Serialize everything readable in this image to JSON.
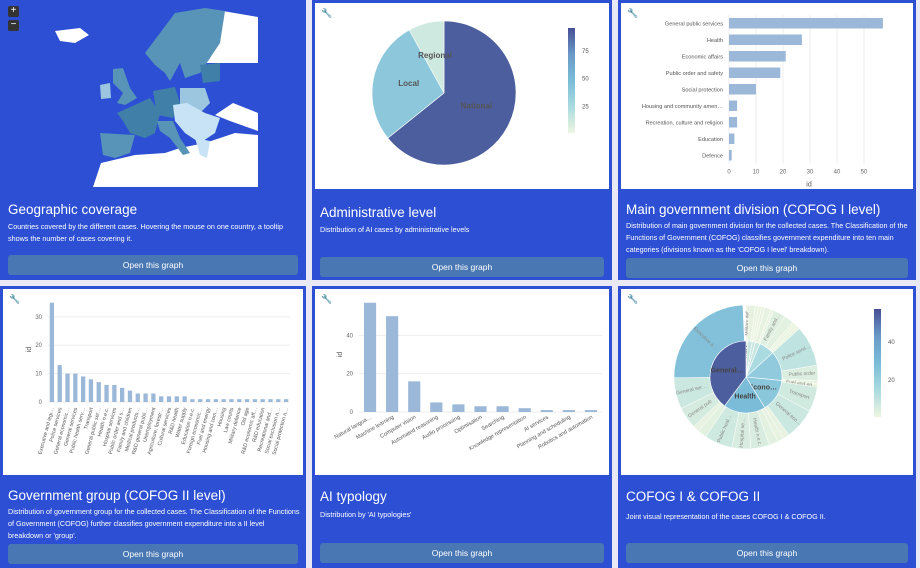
{
  "cards": [
    {
      "title": "Geographic coverage",
      "description": "Countries covered by the different cases. Hovering the mouse on one country, a tooltip shows the number of cases covering it.",
      "button": "Open this graph"
    },
    {
      "title": "Administrative level",
      "description": "Distribution of AI cases by administrative levels",
      "button": "Open this graph"
    },
    {
      "title": "Main government division (COFOG I level)",
      "description": "Distribution of main government division for the collected cases. The Classification of the Functions of Government (COFOG) classifies government expenditure into ten main categories (divisions known as the 'COFOG I level' breakdown).",
      "button": "Open this graph"
    },
    {
      "title": "Government group (COFOG II level)",
      "description": "Distribution of government group for the collected cases. The Classification of the Functions of Government (COFOG) further classifies government expenditure into a II level breakdown or 'group'.",
      "button": "Open this graph"
    },
    {
      "title": "AI typology",
      "description": "Distribution by 'AI typologies'",
      "button": "Open this graph"
    },
    {
      "title": "COFOG I & COFOG II",
      "description": "Joint visual representation of the cases COFOG I & COFOG II.",
      "button": "Open this graph"
    }
  ],
  "map": {
    "zoom_in": "+",
    "zoom_out": "−",
    "colors": {
      "sea": "#2c4fd4",
      "none": "#ffffff",
      "high": "#3f7fa8",
      "mid": "#5893b8",
      "low": "#9cc6e0",
      "vlow": "#c7e3f5"
    }
  },
  "colors": {
    "bar": "#9bb8d9",
    "scale": [
      "#eef5e0",
      "#a9dbe0",
      "#7bbcd8",
      "#6a9ac7",
      "#464f94"
    ]
  },
  "chart_data": [
    {
      "type": "pie",
      "title": "Administrative level",
      "labels": [
        "National",
        "Local",
        "Regional"
      ],
      "values": [
        88,
        38,
        11
      ],
      "colorbar_ticks": [
        25,
        50,
        75
      ]
    },
    {
      "type": "bar",
      "orientation": "horizontal",
      "title": "Main government division",
      "xlabel": "id",
      "categories": [
        "General public services",
        "Health",
        "Economic affairs",
        "Public order and safety",
        "Social protection",
        "Housing and community amen…",
        "Recreation, culture and religion",
        "Education",
        "Defence"
      ],
      "values": [
        57,
        27,
        21,
        19,
        10,
        3,
        3,
        2,
        1
      ],
      "xticks": [
        0,
        10,
        20,
        30,
        40,
        50
      ],
      "xlim": [
        0,
        60
      ]
    },
    {
      "type": "bar",
      "title": "Government group",
      "ylabel": "id",
      "categories": [
        "Executive and legi…",
        "Police services",
        "General economic…",
        "General services",
        "Public health serv…",
        "Transport",
        "General public ser…",
        "Health n.e.c.",
        "Hospital services",
        "Public order and s…",
        "Family and children",
        "Medical products…",
        "R&D general publi…",
        "Unemployment",
        "Agriculture, forestr…",
        "Cultural services",
        "R&D health",
        "Water supply",
        "Education n.e.c.",
        "Foreign economic…",
        "Fuel and energy",
        "Housing and com…",
        "Housing",
        "Law courts",
        "Military defence",
        "Old age",
        "R&D economic aff…",
        "R&D education",
        "Recreational and…",
        "Social exclusion n…",
        "Social protection n…"
      ],
      "values": [
        35,
        13,
        10,
        10,
        9,
        8,
        7,
        6,
        6,
        5,
        4,
        3,
        3,
        3,
        2,
        2,
        2,
        2,
        1,
        1,
        1,
        1,
        1,
        1,
        1,
        1,
        1,
        1,
        1,
        1,
        1
      ],
      "yticks": [
        0,
        10,
        20,
        30
      ],
      "ylim": [
        0,
        37
      ]
    },
    {
      "type": "bar",
      "title": "AI typology",
      "ylabel": "id",
      "categories": [
        "Natural langua…",
        "Machine learning",
        "Computer vision",
        "Automated reasoning",
        "Audio processing",
        "Optimisation",
        "Searching",
        "Knowledge representation",
        "AI services",
        "Planning and scheduling",
        "Robotics and automation"
      ],
      "values": [
        57,
        50,
        16,
        5,
        4,
        3,
        3,
        2,
        1,
        1,
        1
      ],
      "yticks": [
        0,
        20,
        40
      ],
      "ylim": [
        0,
        60
      ]
    },
    {
      "type": "sunburst",
      "title": "COFOG I & COFOG II",
      "inner": [
        {
          "label": "Defence",
          "value": 1
        },
        {
          "label": "Recreation",
          "value": 3
        },
        {
          "label": "Education",
          "value": 2
        },
        {
          "label": "Housing",
          "value": 3
        },
        {
          "label": "Social protection",
          "value": 10
        },
        {
          "label": "Public order",
          "value": 19
        },
        {
          "label": "Econo…",
          "value": 21
        },
        {
          "label": "Health",
          "value": 27
        },
        {
          "label": "General…",
          "value": 57
        }
      ],
      "outer": [
        [
          "Military def…",
          1
        ],
        [
          "Cultural",
          2
        ],
        [
          "Recreational",
          1
        ],
        [
          "Education",
          1
        ],
        [
          "R&D educ",
          1
        ],
        [
          "Water supply",
          2
        ],
        [
          "Housing",
          1
        ],
        [
          "Family and…",
          4
        ],
        [
          "Unemp",
          3
        ],
        [
          "Old age",
          1
        ],
        [
          "Social excl",
          1
        ],
        [
          "Social prot",
          1
        ],
        [
          "Police servi…",
          13
        ],
        [
          "Public order",
          5
        ],
        [
          "Law courts",
          1
        ],
        [
          "Fuel and en…",
          1
        ],
        [
          "Transport",
          8
        ],
        [
          "General eco…",
          10
        ],
        [
          "Agriculture",
          2
        ],
        [
          "R&D health",
          2
        ],
        [
          "Medical",
          3
        ],
        [
          "Health n.e.c.",
          6
        ],
        [
          "Hospital se…",
          6
        ],
        [
          "Public heal…",
          9
        ],
        [
          "R&D general",
          3
        ],
        [
          "Other",
          2
        ],
        [
          "General pub",
          7
        ],
        [
          "General ser…",
          10
        ],
        [
          "Executive a…",
          35
        ]
      ],
      "colorbar_ticks": [
        20,
        40
      ]
    }
  ]
}
